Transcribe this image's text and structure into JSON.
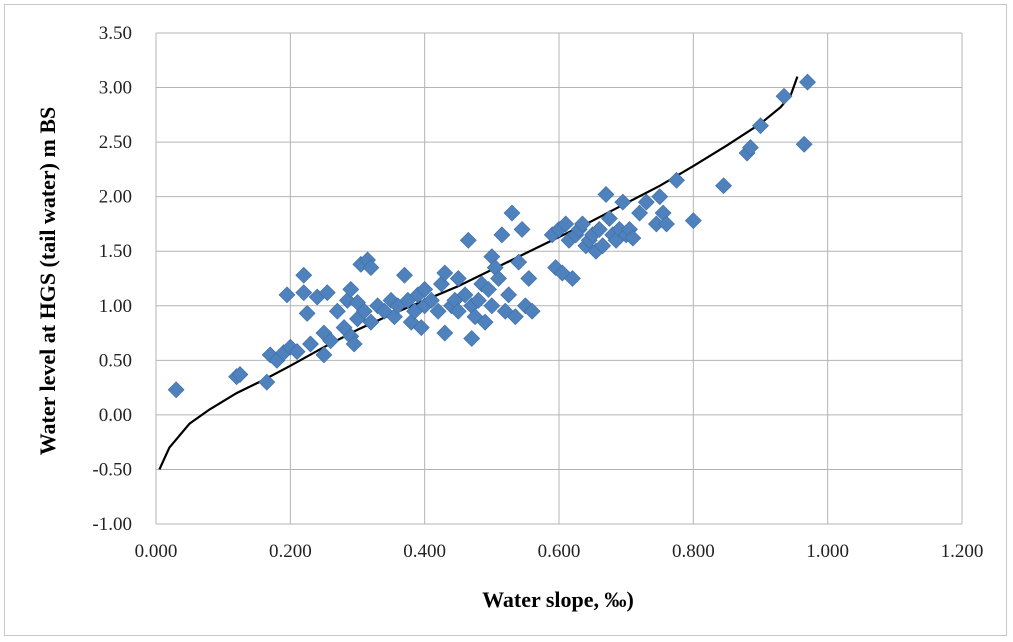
{
  "chart_data": {
    "type": "scatter",
    "xlabel": "Water slope, ‰)",
    "ylabel": "Water level at HGS (tail water) m BS",
    "xlim": [
      0.0,
      1.2
    ],
    "ylim": [
      -1.0,
      3.5
    ],
    "x_ticks": [
      "0.000",
      "0.200",
      "0.400",
      "0.600",
      "0.800",
      "1.000",
      "1.200"
    ],
    "y_ticks": [
      "-1.00",
      "-0.50",
      "0.00",
      "0.50",
      "1.00",
      "1.50",
      "2.00",
      "2.50",
      "3.00",
      "3.50"
    ],
    "grid": true,
    "marker_color": "#4f81bd",
    "marker_shape": "diamond",
    "trend_color": "#000000",
    "points": [
      [
        0.03,
        0.23
      ],
      [
        0.12,
        0.35
      ],
      [
        0.125,
        0.37
      ],
      [
        0.165,
        0.3
      ],
      [
        0.17,
        0.55
      ],
      [
        0.18,
        0.5
      ],
      [
        0.19,
        0.57
      ],
      [
        0.195,
        1.1
      ],
      [
        0.2,
        0.62
      ],
      [
        0.21,
        0.58
      ],
      [
        0.22,
        1.28
      ],
      [
        0.22,
        1.12
      ],
      [
        0.225,
        0.93
      ],
      [
        0.23,
        0.65
      ],
      [
        0.24,
        1.08
      ],
      [
        0.25,
        0.55
      ],
      [
        0.25,
        0.75
      ],
      [
        0.255,
        1.12
      ],
      [
        0.26,
        0.68
      ],
      [
        0.27,
        0.95
      ],
      [
        0.28,
        0.8
      ],
      [
        0.285,
        1.05
      ],
      [
        0.29,
        1.15
      ],
      [
        0.29,
        0.72
      ],
      [
        0.295,
        0.65
      ],
      [
        0.3,
        0.88
      ],
      [
        0.3,
        1.03
      ],
      [
        0.305,
        1.38
      ],
      [
        0.31,
        0.95
      ],
      [
        0.315,
        1.42
      ],
      [
        0.32,
        1.35
      ],
      [
        0.32,
        0.85
      ],
      [
        0.33,
        1.0
      ],
      [
        0.34,
        0.95
      ],
      [
        0.35,
        1.05
      ],
      [
        0.355,
        0.9
      ],
      [
        0.36,
        1.0
      ],
      [
        0.37,
        1.28
      ],
      [
        0.375,
        1.05
      ],
      [
        0.38,
        0.85
      ],
      [
        0.385,
        0.95
      ],
      [
        0.39,
        1.1
      ],
      [
        0.395,
        0.8
      ],
      [
        0.4,
        1.15
      ],
      [
        0.4,
        1.0
      ],
      [
        0.41,
        1.05
      ],
      [
        0.42,
        0.95
      ],
      [
        0.425,
        1.2
      ],
      [
        0.43,
        1.3
      ],
      [
        0.43,
        0.75
      ],
      [
        0.44,
        1.0
      ],
      [
        0.445,
        1.05
      ],
      [
        0.45,
        0.95
      ],
      [
        0.45,
        1.25
      ],
      [
        0.46,
        1.1
      ],
      [
        0.465,
        1.6
      ],
      [
        0.47,
        0.7
      ],
      [
        0.47,
        1.0
      ],
      [
        0.475,
        0.9
      ],
      [
        0.48,
        1.05
      ],
      [
        0.485,
        1.2
      ],
      [
        0.49,
        0.85
      ],
      [
        0.495,
        1.15
      ],
      [
        0.5,
        1.45
      ],
      [
        0.5,
        1.0
      ],
      [
        0.505,
        1.35
      ],
      [
        0.51,
        1.25
      ],
      [
        0.515,
        1.65
      ],
      [
        0.52,
        0.95
      ],
      [
        0.525,
        1.1
      ],
      [
        0.53,
        1.85
      ],
      [
        0.535,
        0.9
      ],
      [
        0.54,
        1.4
      ],
      [
        0.545,
        1.7
      ],
      [
        0.55,
        1.0
      ],
      [
        0.555,
        1.25
      ],
      [
        0.56,
        0.95
      ],
      [
        0.59,
        1.65
      ],
      [
        0.595,
        1.35
      ],
      [
        0.6,
        1.7
      ],
      [
        0.605,
        1.3
      ],
      [
        0.61,
        1.75
      ],
      [
        0.615,
        1.6
      ],
      [
        0.62,
        1.25
      ],
      [
        0.625,
        1.65
      ],
      [
        0.63,
        1.7
      ],
      [
        0.635,
        1.75
      ],
      [
        0.64,
        1.55
      ],
      [
        0.645,
        1.6
      ],
      [
        0.65,
        1.65
      ],
      [
        0.655,
        1.5
      ],
      [
        0.66,
        1.7
      ],
      [
        0.665,
        1.55
      ],
      [
        0.67,
        2.02
      ],
      [
        0.675,
        1.8
      ],
      [
        0.68,
        1.65
      ],
      [
        0.685,
        1.6
      ],
      [
        0.69,
        1.7
      ],
      [
        0.695,
        1.95
      ],
      [
        0.7,
        1.65
      ],
      [
        0.705,
        1.7
      ],
      [
        0.71,
        1.62
      ],
      [
        0.72,
        1.85
      ],
      [
        0.73,
        1.95
      ],
      [
        0.745,
        1.75
      ],
      [
        0.75,
        2.0
      ],
      [
        0.755,
        1.85
      ],
      [
        0.76,
        1.75
      ],
      [
        0.775,
        2.15
      ],
      [
        0.8,
        1.78
      ],
      [
        0.845,
        2.1
      ],
      [
        0.88,
        2.4
      ],
      [
        0.885,
        2.45
      ],
      [
        0.9,
        2.65
      ],
      [
        0.935,
        2.92
      ],
      [
        0.965,
        2.48
      ],
      [
        0.97,
        3.05
      ]
    ],
    "trendline": [
      [
        0.005,
        -0.5
      ],
      [
        0.02,
        -0.3
      ],
      [
        0.05,
        -0.08
      ],
      [
        0.08,
        0.05
      ],
      [
        0.12,
        0.2
      ],
      [
        0.16,
        0.32
      ],
      [
        0.2,
        0.45
      ],
      [
        0.25,
        0.62
      ],
      [
        0.3,
        0.78
      ],
      [
        0.35,
        0.92
      ],
      [
        0.4,
        1.05
      ],
      [
        0.45,
        1.18
      ],
      [
        0.5,
        1.33
      ],
      [
        0.55,
        1.48
      ],
      [
        0.6,
        1.63
      ],
      [
        0.65,
        1.78
      ],
      [
        0.7,
        1.94
      ],
      [
        0.75,
        2.1
      ],
      [
        0.8,
        2.28
      ],
      [
        0.85,
        2.47
      ],
      [
        0.9,
        2.67
      ],
      [
        0.93,
        2.82
      ],
      [
        0.945,
        2.93
      ],
      [
        0.955,
        3.1
      ]
    ]
  }
}
